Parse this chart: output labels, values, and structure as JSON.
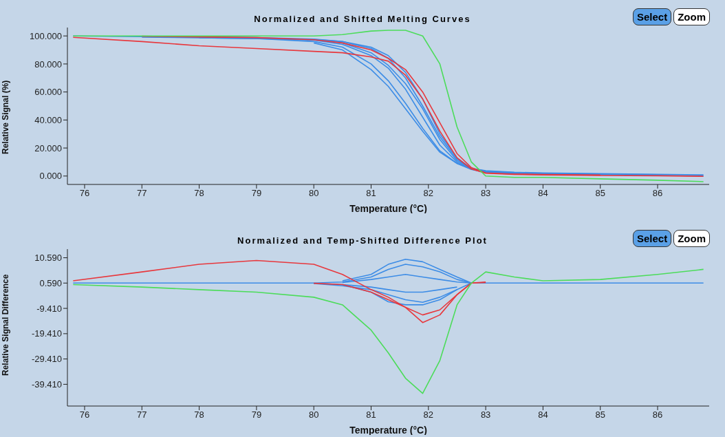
{
  "chart_data": [
    {
      "type": "line",
      "title": "Normalized and Shifted Melting Curves",
      "xlabel": "Temperature (°C)",
      "ylabel": "Relative Signal (%)",
      "annotations": [
        "Select",
        "Zoom"
      ],
      "xlim": [
        75.7,
        86.9
      ],
      "xticks": [
        76,
        77,
        78,
        79,
        80,
        81,
        82,
        83,
        84,
        85,
        86
      ],
      "ylim": [
        -6,
        106
      ],
      "yticks": [
        {
          "value": 0,
          "label": "0.000"
        },
        {
          "value": 20,
          "label": "20.000"
        },
        {
          "value": 40,
          "label": "40.000"
        },
        {
          "value": 60,
          "label": "60.000"
        },
        {
          "value": 80,
          "label": "80.000"
        },
        {
          "value": 100,
          "label": "100.000"
        }
      ],
      "marker": "none",
      "line_style": "solid",
      "x": [
        75.8,
        77,
        78,
        79,
        80,
        80.5,
        81,
        81.3,
        81.6,
        81.9,
        82.2,
        82.5,
        82.75,
        83,
        83.5,
        84,
        85,
        86,
        86.8
      ],
      "series": [
        {
          "color": "#3c8ce6",
          "values": [
            100,
            99.5,
            99,
            98.5,
            97,
            94,
            86,
            77,
            62,
            42,
            22,
            10,
            5,
            3,
            2,
            1.5,
            1,
            0.5,
            0
          ]
        },
        {
          "color": "#3c8ce6",
          "x": [
            78,
            79,
            80,
            80.5,
            81,
            81.3,
            81.6,
            81.9,
            82.2,
            82.5,
            82.75,
            83,
            83.5,
            84,
            85
          ],
          "values": [
            98.6,
            98,
            97.5,
            96,
            91,
            84,
            70,
            50,
            28,
            12,
            5.2,
            3.3,
            2.3,
            1.8,
            1.3
          ]
        },
        {
          "color": "#3c8ce6",
          "x": [
            79,
            80,
            80.5,
            81,
            81.3,
            81.6,
            81.9,
            82.2,
            82.5,
            82.75,
            83,
            83.5,
            84
          ],
          "values": [
            98.2,
            96,
            92,
            80,
            68,
            52,
            34,
            18,
            9,
            5,
            2.7,
            1.8,
            1.2
          ]
        },
        {
          "color": "#3c8ce6",
          "x": [
            77,
            78,
            79,
            80,
            80.5,
            81,
            81.3,
            81.6,
            81.9,
            82.2,
            82.5,
            82.75,
            83,
            83.5,
            84,
            85,
            86
          ],
          "values": [
            99.2,
            98.7,
            98.2,
            97.2,
            95,
            88,
            79,
            66,
            48,
            26,
            11,
            5.3,
            3.5,
            2.5,
            2,
            1.5,
            1
          ]
        },
        {
          "color": "#3c8ce6",
          "x": [
            80,
            80.5,
            81,
            81.3,
            81.6,
            81.9,
            82.2,
            82.5,
            82.75,
            83,
            83.5
          ],
          "values": [
            95,
            90,
            76,
            64,
            48,
            32,
            17,
            9,
            4.7,
            2.5,
            1.6
          ]
        },
        {
          "color": "#3c8ce6",
          "x": [
            78,
            79,
            80,
            80.5,
            81,
            81.3,
            81.6,
            81.9,
            82.2,
            82.5,
            82.75,
            83,
            83.5,
            84,
            85,
            86,
            86.8
          ],
          "values": [
            99.4,
            98.9,
            97.8,
            96,
            92,
            86,
            74,
            55,
            30,
            13,
            5.5,
            3.8,
            2.7,
            2.2,
            1.7,
            1.2,
            0.8
          ]
        },
        {
          "color": "#e8373c",
          "values": [
            99,
            96,
            93,
            91,
            89,
            88,
            85,
            82,
            72,
            55,
            32,
            13,
            5,
            2,
            1.2,
            0.8,
            0.4,
            0.2,
            -0.2
          ]
        },
        {
          "color": "#e8373c",
          "x": [
            77,
            78,
            79,
            80,
            80.5,
            81,
            81.3,
            81.6,
            81.9,
            82.2,
            82.5,
            82.75,
            83,
            83.5,
            84,
            85
          ],
          "values": [
            99.8,
            99.3,
            98.8,
            97.3,
            95,
            90,
            84,
            76,
            60,
            38,
            16,
            6,
            2.2,
            1.4,
            1.1,
            0.7
          ]
        },
        {
          "color": "#4cdc5a",
          "values": [
            100,
            100,
            100,
            100,
            100,
            101,
            103.5,
            104,
            104,
            100,
            80,
            35,
            10,
            0,
            -1,
            -1,
            -2,
            -3,
            -4
          ]
        }
      ]
    },
    {
      "type": "line",
      "title": "Normalized and Temp-Shifted Difference Plot",
      "xlabel": "Temperature (°C)",
      "ylabel": "Relative Signal Difference",
      "annotations": [
        "Select",
        "Zoom"
      ],
      "xlim": [
        75.7,
        86.9
      ],
      "xticks": [
        76,
        77,
        78,
        79,
        80,
        81,
        82,
        83,
        84,
        85,
        86
      ],
      "ylim": [
        -48,
        14
      ],
      "yticks": [
        {
          "value": -39.41,
          "label": "-39.410"
        },
        {
          "value": -29.41,
          "label": "-29.410"
        },
        {
          "value": -19.41,
          "label": "-19.410"
        },
        {
          "value": -9.41,
          "label": "-9.410"
        },
        {
          "value": 0.59,
          "label": "0.590"
        },
        {
          "value": 10.59,
          "label": "10.590"
        }
      ],
      "marker": "none",
      "line_style": "solid",
      "x": [
        75.8,
        77,
        78,
        79,
        80,
        80.5,
        81,
        81.3,
        81.6,
        81.9,
        82.2,
        82.5,
        82.75,
        83,
        83.5,
        84,
        85,
        86,
        86.8
      ],
      "series": [
        {
          "color": "#3c8ce6",
          "values": [
            0.6,
            0.6,
            0.6,
            0.6,
            0.6,
            1,
            3,
            6,
            8,
            7,
            5,
            2,
            0.6,
            0.6,
            0.6,
            0.6,
            0.6,
            0.6,
            0.6
          ]
        },
        {
          "color": "#3c8ce6",
          "x": [
            80.5,
            81,
            81.3,
            81.6,
            81.9,
            82.2,
            82.5,
            82.75
          ],
          "values": [
            1.5,
            4,
            8,
            10,
            9,
            6,
            3,
            0.6
          ]
        },
        {
          "color": "#3c8ce6",
          "x": [
            80,
            80.5,
            81,
            81.3,
            81.6,
            81.9,
            82.2,
            82.5,
            82.75
          ],
          "values": [
            0.4,
            -0.5,
            -2,
            -4,
            -6,
            -7,
            -5,
            -2,
            0.6
          ]
        },
        {
          "color": "#3c8ce6",
          "x": [
            80.5,
            81,
            81.3,
            81.6,
            81.9,
            82.2,
            82.5
          ],
          "values": [
            0,
            -3,
            -6.8,
            -8,
            -8,
            -6,
            -2
          ]
        },
        {
          "color": "#3c8ce6",
          "x": [
            80.5,
            81,
            81.3,
            81.6,
            81.9,
            82.2,
            82.5,
            82.75
          ],
          "values": [
            0.8,
            2,
            3,
            4,
            3,
            2,
            1,
            0.6
          ]
        },
        {
          "color": "#3c8ce6",
          "x": [
            80,
            80.5,
            81,
            81.3,
            81.6,
            81.9,
            82.2,
            82.5
          ],
          "values": [
            0.5,
            0,
            -1,
            -2,
            -3,
            -3,
            -2,
            -1
          ]
        },
        {
          "color": "#e8373c",
          "x": [
            75.8,
            77,
            78,
            79,
            80,
            80.5,
            81,
            81.3,
            81.6,
            81.9,
            82.2,
            82.5,
            82.75,
            83
          ],
          "values": [
            1.5,
            5,
            8,
            9.5,
            8,
            4,
            -2,
            -5,
            -9,
            -15,
            -12,
            -4,
            0.6,
            1
          ]
        },
        {
          "color": "#e8373c",
          "x": [
            80,
            80.5,
            81,
            81.3,
            81.6,
            81.9,
            82.2,
            82.5,
            82.75,
            83
          ],
          "values": [
            0.5,
            0,
            -3,
            -6,
            -9,
            -12,
            -10,
            -4,
            0.6,
            0.8
          ]
        },
        {
          "color": "#4cdc5a",
          "values": [
            0,
            -1,
            -2,
            -3,
            -5,
            -8,
            -18,
            -27,
            -37,
            -43,
            -30,
            -8,
            0.6,
            5,
            3,
            1.5,
            2,
            4,
            6
          ]
        }
      ]
    }
  ]
}
